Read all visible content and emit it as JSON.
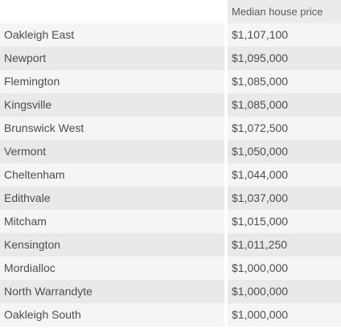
{
  "table": {
    "headers": {
      "suburb": "",
      "price": "Median house price"
    },
    "rows": [
      {
        "suburb": "Oakleigh East",
        "price": "$1,107,100"
      },
      {
        "suburb": "Newport",
        "price": "$1,095,000"
      },
      {
        "suburb": "Flemington",
        "price": "$1,085,000"
      },
      {
        "suburb": "Kingsville",
        "price": "$1,085,000"
      },
      {
        "suburb": "Brunswick West",
        "price": "$1,072,500"
      },
      {
        "suburb": "Vermont",
        "price": "$1,050,000"
      },
      {
        "suburb": "Cheltenham",
        "price": "$1,044,000"
      },
      {
        "suburb": "Edithvale",
        "price": "$1,037,000"
      },
      {
        "suburb": "Mitcham",
        "price": "$1,015,000"
      },
      {
        "suburb": "Kensington",
        "price": "$1,011,250"
      },
      {
        "suburb": "Mordialloc",
        "price": "$1,000,000"
      },
      {
        "suburb": "North Warrandyte",
        "price": "$1,000,000"
      },
      {
        "suburb": "Oakleigh South",
        "price": "$1,000,000"
      }
    ]
  }
}
